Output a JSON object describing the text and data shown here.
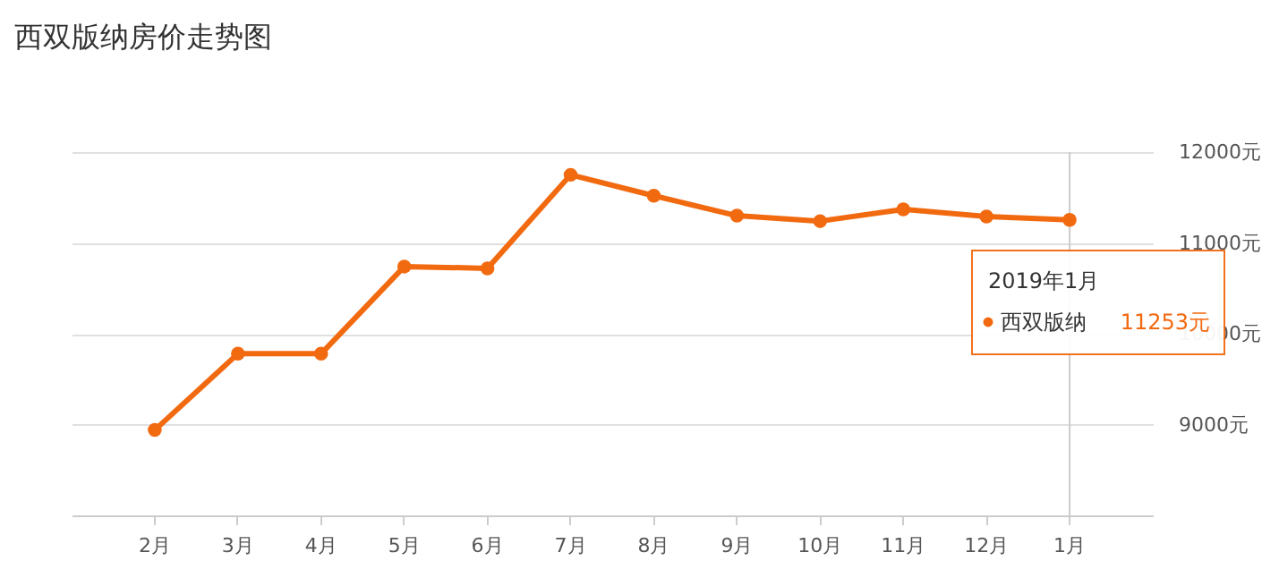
{
  "chart_data": {
    "type": "line",
    "title": "西双版纳房价走势图",
    "categories": [
      "2月",
      "3月",
      "4月",
      "5月",
      "6月",
      "7月",
      "8月",
      "9月",
      "10月",
      "11月",
      "12月",
      "1月"
    ],
    "series": [
      {
        "name": "西双版纳",
        "color": "#f26a10",
        "values": [
          8940,
          9780,
          9780,
          10740,
          10720,
          11750,
          11520,
          11300,
          11240,
          11370,
          11290,
          11253
        ]
      }
    ],
    "ylim": [
      8000,
      12000
    ],
    "yticks": [
      {
        "value": 9000,
        "label": "9000元"
      },
      {
        "value": 10000,
        "label": "10000元"
      },
      {
        "value": 11000,
        "label": "11000元"
      },
      {
        "value": 12000,
        "label": "12000元"
      }
    ],
    "ref_lines": [
      {
        "axis": "x",
        "value": "1月",
        "color": "#cccccc"
      }
    ],
    "annotations": [
      "2019年1月",
      "11253元"
    ],
    "grid": "y",
    "legend": "right",
    "marker": "circle",
    "line_style": "solid"
  }
}
